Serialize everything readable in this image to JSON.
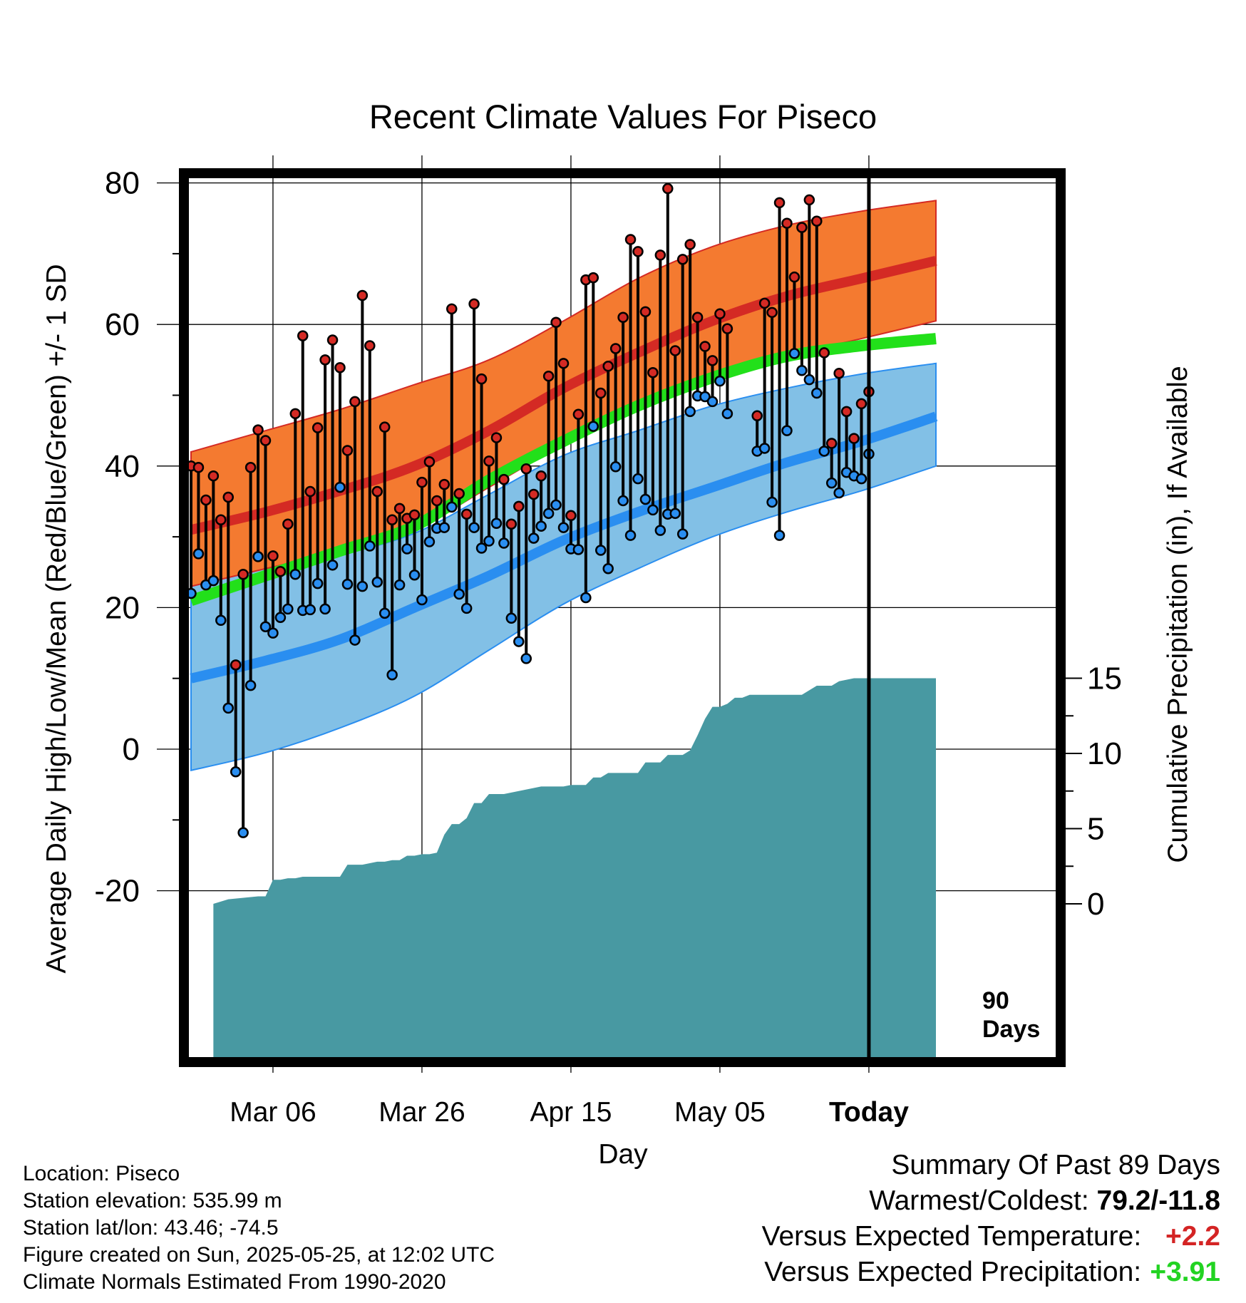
{
  "chart_data": {
    "type": "line",
    "title": "Recent Climate Values For Piseco",
    "xlabel": "Day",
    "ylabel_left": "Average Daily High/Low/Mean (Red/Blue/Green) +/- 1 SD",
    "ylabel_right": "Cumulative Precipitation (in), If Available",
    "x_unit": "day",
    "x_range": [
      0,
      100
    ],
    "ylim_left": [
      -22,
      86
    ],
    "ylim_right": [
      0,
      20
    ],
    "y_ticks_left": [
      -20,
      0,
      20,
      40,
      60,
      80
    ],
    "y_ticks_right": [
      0,
      5,
      10,
      15
    ],
    "x_ticks": [
      {
        "day": 11,
        "label": "Mar 06"
      },
      {
        "day": 31,
        "label": "Mar 26"
      },
      {
        "day": 51,
        "label": "Apr 15"
      },
      {
        "day": 71,
        "label": "May 05"
      },
      {
        "day": 91,
        "label": "Today"
      }
    ],
    "today_day": 91,
    "today_annotation": "90 Days",
    "grid": true,
    "colors": {
      "high_band": "#f47a30",
      "high_mean": "#d42a24",
      "low_band": "#82c0e6",
      "low_mean": "#2a8ef0",
      "mean_line": "#22e01a",
      "precip": "#4899a2",
      "high_dot": "#d42a24",
      "low_dot": "#2a8ef0"
    },
    "normals": {
      "days": [
        0,
        10,
        20,
        30,
        40,
        50,
        60,
        70,
        80,
        90,
        100
      ],
      "high_mean": [
        31,
        33.5,
        36.5,
        40,
        45,
        51,
        56,
        60.5,
        64,
        66.5,
        69
      ],
      "high_upper": [
        42,
        45,
        48,
        51.5,
        55,
        60.5,
        66.5,
        71,
        74,
        76,
        77.5
      ],
      "high_lower": [
        23,
        25.5,
        28,
        31,
        37,
        43,
        48,
        52,
        55.5,
        58,
        60.5
      ],
      "mean": [
        21,
        24.5,
        28,
        31.5,
        38,
        43.5,
        48.5,
        52.5,
        55.5,
        57,
        58
      ],
      "low_mean": [
        10,
        12.5,
        15.5,
        20,
        24.5,
        29.5,
        33.5,
        37,
        40.5,
        43.5,
        47
      ],
      "low_upper": [
        23,
        25.5,
        27.5,
        30.5,
        36,
        41.5,
        45,
        48.5,
        51,
        53,
        54.5
      ],
      "low_lower": [
        -3,
        -0.5,
        3,
        7.5,
        14,
        20.5,
        25.5,
        30,
        33.5,
        36.5,
        40
      ]
    },
    "observed": [
      {
        "day": 0,
        "high": 40,
        "low": 22
      },
      {
        "day": 1,
        "high": 39.8,
        "low": 27.6
      },
      {
        "day": 2,
        "high": 35.2,
        "low": 23.2
      },
      {
        "day": 3,
        "high": 38.6,
        "low": 23.8
      },
      {
        "day": 4,
        "high": 32.4,
        "low": 18.2
      },
      {
        "day": 5,
        "high": 35.6,
        "low": 5.8
      },
      {
        "day": 6,
        "high": 11.9,
        "low": -3.2
      },
      {
        "day": 7,
        "high": 24.7,
        "low": -11.8
      },
      {
        "day": 8,
        "high": 39.8,
        "low": 9
      },
      {
        "day": 9,
        "high": 45.1,
        "low": 27.2
      },
      {
        "day": 10,
        "high": 43.6,
        "low": 17.3
      },
      {
        "day": 11,
        "high": 27.3,
        "low": 16.4
      },
      {
        "day": 12,
        "high": 25.1,
        "low": 18.6
      },
      {
        "day": 13,
        "high": 31.8,
        "low": 19.8
      },
      {
        "day": 14,
        "high": 47.4,
        "low": 24.7
      },
      {
        "day": 15,
        "high": 58.4,
        "low": 19.6
      },
      {
        "day": 16,
        "high": 36.4,
        "low": 19.7
      },
      {
        "day": 17,
        "high": 45.4,
        "low": 23.4
      },
      {
        "day": 18,
        "high": 55,
        "low": 19.8
      },
      {
        "day": 19,
        "high": 57.8,
        "low": 26
      },
      {
        "day": 20,
        "high": 53.9,
        "low": 37
      },
      {
        "day": 21,
        "high": 42.2,
        "low": 23.3
      },
      {
        "day": 22,
        "high": 49.1,
        "low": 15.4
      },
      {
        "day": 23,
        "high": 64.1,
        "low": 23
      },
      {
        "day": 24,
        "high": 57,
        "low": 28.7
      },
      {
        "day": 25,
        "high": 36.4,
        "low": 23.6
      },
      {
        "day": 26,
        "high": 45.5,
        "low": 19.2
      },
      {
        "day": 27,
        "high": 32.4,
        "low": 10.5
      },
      {
        "day": 28,
        "high": 34,
        "low": 23.2
      },
      {
        "day": 29,
        "high": 32.6,
        "low": 28.3
      },
      {
        "day": 30,
        "high": 33.1,
        "low": 24.6
      },
      {
        "day": 31,
        "high": 37.7,
        "low": 21.1
      },
      {
        "day": 32,
        "high": 40.6,
        "low": 29.3
      },
      {
        "day": 33,
        "high": 35.1,
        "low": 31.2
      },
      {
        "day": 34,
        "high": 37.4,
        "low": 31.3
      },
      {
        "day": 35,
        "high": 62.2,
        "low": 34.2
      },
      {
        "day": 36,
        "high": 36.1,
        "low": 21.9
      },
      {
        "day": 37,
        "high": 33.2,
        "low": 19.9
      },
      {
        "day": 38,
        "high": 62.9,
        "low": 31.3
      },
      {
        "day": 39,
        "high": 52.3,
        "low": 28.4
      },
      {
        "day": 40,
        "high": 40.7,
        "low": 29.4
      },
      {
        "day": 41,
        "high": 44,
        "low": 31.9
      },
      {
        "day": 42,
        "high": 38.1,
        "low": 29.1
      },
      {
        "day": 43,
        "high": 31.8,
        "low": 18.5
      },
      {
        "day": 44,
        "high": 34.3,
        "low": 15.2
      },
      {
        "day": 45,
        "high": 39.6,
        "low": 12.8
      },
      {
        "day": 46,
        "high": 36,
        "low": 29.8
      },
      {
        "day": 47,
        "high": 38.6,
        "low": 31.5
      },
      {
        "day": 48,
        "high": 52.7,
        "low": 33.3
      },
      {
        "day": 49,
        "high": 60.3,
        "low": 34.5
      },
      {
        "day": 50,
        "high": 54.5,
        "low": 31.3
      },
      {
        "day": 51,
        "high": 33,
        "low": 28.3
      },
      {
        "day": 52,
        "high": 47.3,
        "low": 28.2
      },
      {
        "day": 53,
        "high": 66.3,
        "low": 21.4
      },
      {
        "day": 54,
        "high": 66.6,
        "low": 45.6
      },
      {
        "day": 55,
        "high": 50.3,
        "low": 28.1
      },
      {
        "day": 56,
        "high": 54.1,
        "low": 25.5
      },
      {
        "day": 57,
        "high": 56.6,
        "low": 39.9
      },
      {
        "day": 58,
        "high": 61,
        "low": 35.1
      },
      {
        "day": 59,
        "high": 72,
        "low": 30.2
      },
      {
        "day": 60,
        "high": 70.3,
        "low": 38.2
      },
      {
        "day": 61,
        "high": 61.8,
        "low": 35.3
      },
      {
        "day": 62,
        "high": 53.2,
        "low": 33.8
      },
      {
        "day": 63,
        "high": 69.8,
        "low": 30.9
      },
      {
        "day": 64,
        "high": 79.2,
        "low": 33.2
      },
      {
        "day": 65,
        "high": 56.3,
        "low": 33.3
      },
      {
        "day": 66,
        "high": 69.2,
        "low": 30.4
      },
      {
        "day": 67,
        "high": 71.3,
        "low": 47.7
      },
      {
        "day": 68,
        "high": 61,
        "low": 49.9
      },
      {
        "day": 69,
        "high": 56.9,
        "low": 49.8
      },
      {
        "day": 70,
        "high": 54.9,
        "low": 49.1
      },
      {
        "day": 71,
        "high": 61.5,
        "low": 52
      },
      {
        "day": 72,
        "high": 59.4,
        "low": 47.4
      },
      {
        "day": 76,
        "high": 47.1,
        "low": 42.1
      },
      {
        "day": 77,
        "high": 63,
        "low": 42.5
      },
      {
        "day": 78,
        "high": 61.7,
        "low": 34.9
      },
      {
        "day": 79,
        "high": 77.2,
        "low": 30.2
      },
      {
        "day": 80,
        "high": 74.3,
        "low": 45
      },
      {
        "day": 81,
        "high": 66.7,
        "low": 55.9
      },
      {
        "day": 82,
        "high": 73.7,
        "low": 53.5
      },
      {
        "day": 83,
        "high": 77.6,
        "low": 52.2
      },
      {
        "day": 84,
        "high": 74.6,
        "low": 50.3
      },
      {
        "day": 85,
        "high": 56,
        "low": 42.1
      },
      {
        "day": 86,
        "high": 43.2,
        "low": 37.6
      },
      {
        "day": 87,
        "high": 53.1,
        "low": 36.2
      },
      {
        "day": 88,
        "high": 47.7,
        "low": 39.1
      },
      {
        "day": 89,
        "high": 43.9,
        "low": 38.6
      },
      {
        "day": 90,
        "high": 48.8,
        "low": 38.2
      },
      {
        "day": 91,
        "high": 50.5,
        "low": 41.7
      }
    ],
    "precipitation": {
      "days": [
        3,
        5,
        9,
        10,
        11,
        12,
        13,
        14,
        15,
        16,
        17,
        18,
        19,
        20,
        21,
        22,
        23,
        24,
        25,
        26,
        27,
        28,
        29,
        30,
        31,
        32,
        33,
        34,
        35,
        36,
        37,
        38,
        39,
        40,
        41,
        42,
        43,
        44,
        45,
        46,
        47,
        48,
        49,
        50,
        51,
        52,
        53,
        54,
        55,
        56,
        57,
        58,
        59,
        60,
        61,
        62,
        63,
        64,
        65,
        66,
        67,
        68,
        69,
        70,
        71,
        72,
        73,
        74,
        75,
        76,
        77,
        78,
        79,
        80,
        81,
        82,
        83,
        84,
        85,
        86,
        87,
        88,
        89,
        90,
        91,
        100
      ],
      "values": [
        0,
        0.3,
        0.5,
        0.5,
        1.6,
        1.6,
        1.7,
        1.7,
        1.8,
        1.8,
        1.8,
        1.8,
        1.8,
        1.8,
        2.6,
        2.6,
        2.6,
        2.7,
        2.8,
        2.8,
        2.9,
        2.9,
        3.2,
        3.2,
        3.3,
        3.3,
        3.4,
        4.6,
        5.3,
        5.3,
        5.7,
        6.7,
        6.7,
        7.3,
        7.3,
        7.3,
        7.4,
        7.5,
        7.6,
        7.7,
        7.8,
        7.8,
        7.8,
        7.8,
        7.9,
        7.9,
        7.9,
        8.4,
        8.4,
        8.7,
        8.7,
        8.7,
        8.7,
        8.7,
        9.4,
        9.4,
        9.4,
        9.9,
        9.9,
        9.9,
        10.2,
        11.2,
        12.3,
        13.1,
        13.1,
        13.3,
        13.7,
        13.7,
        13.9,
        13.9,
        13.9,
        13.9,
        13.9,
        13.9,
        13.9,
        13.9,
        14.2,
        14.5,
        14.5,
        14.5,
        14.8,
        14.9,
        15.0,
        15.0,
        15.0,
        15.0
      ]
    }
  },
  "info": {
    "location": "Location: Piseco",
    "elevation": "Station elevation: 535.99 m",
    "latlon": "Station lat/lon: 43.46; -74.5",
    "created": "Figure created on Sun, 2025-05-25, at 12:02 UTC",
    "normals": "Climate Normals Estimated From 1990-2020"
  },
  "summary": {
    "heading": "Summary Of Past 89 Days",
    "warmest_label": "Warmest/Coldest:",
    "warmest_value": "79.2/-11.8",
    "temp_label": "Versus Expected Temperature:",
    "temp_value": "+2.2",
    "prcp_label": "Versus Expected Precipitation:",
    "prcp_value": "+3.91"
  }
}
